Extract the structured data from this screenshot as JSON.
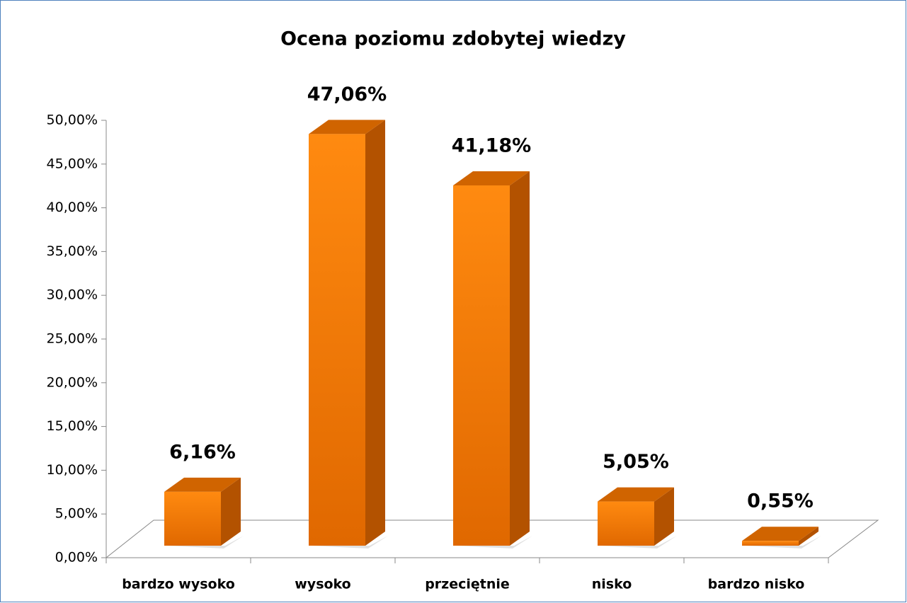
{
  "chart_data": {
    "type": "bar3d",
    "title": "Ocena poziomu zdobytej wiedzy",
    "categories": [
      "bardzo wysoko",
      "wysoko",
      "przeciętnie",
      "nisko",
      "bardzo nisko"
    ],
    "values": [
      6.16,
      47.06,
      41.18,
      5.05,
      0.55
    ],
    "value_labels": [
      "6,16%",
      "47,06%",
      "41,18%",
      "5,05%",
      "0,55%"
    ],
    "color": "#f57a00",
    "ylim": [
      0,
      50
    ],
    "yticks": [
      {
        "value": 0,
        "label": "0,00%"
      },
      {
        "value": 5,
        "label": "5,00%"
      },
      {
        "value": 10,
        "label": "10,00%"
      },
      {
        "value": 15,
        "label": "15,00%"
      },
      {
        "value": 20,
        "label": "20,00%"
      },
      {
        "value": 25,
        "label": "25,00%"
      },
      {
        "value": 30,
        "label": "30,00%"
      },
      {
        "value": 35,
        "label": "35,00%"
      },
      {
        "value": 40,
        "label": "40,00%"
      },
      {
        "value": 45,
        "label": "45,00%"
      },
      {
        "value": 50,
        "label": "50,00%"
      }
    ]
  }
}
